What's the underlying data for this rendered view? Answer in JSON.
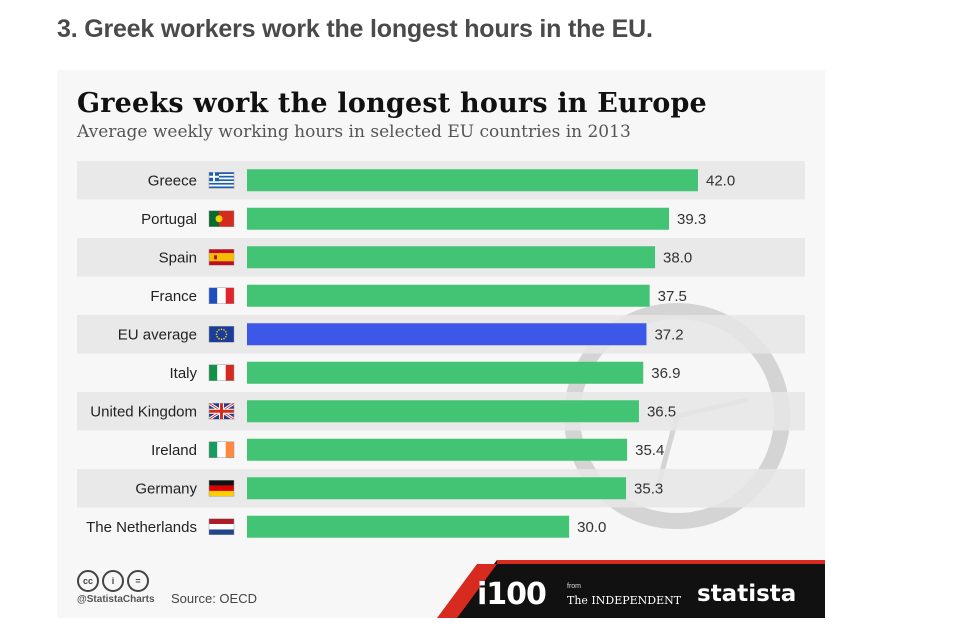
{
  "heading": "3. Greek workers work the longest hours in the EU.",
  "chart_data": {
    "type": "bar",
    "orientation": "horizontal",
    "title": "Greeks work the longest hours in Europe",
    "subtitle": "Average weekly working hours in selected EU countries in 2013",
    "categories": [
      "Greece",
      "Portugal",
      "Spain",
      "France",
      "EU average",
      "Italy",
      "United Kingdom",
      "Ireland",
      "Germany",
      "The Netherlands"
    ],
    "values": [
      42.0,
      39.3,
      38.0,
      37.5,
      37.2,
      36.9,
      36.5,
      35.4,
      35.3,
      30.0
    ],
    "value_labels": [
      "42.0",
      "39.3",
      "38.0",
      "37.5",
      "37.2",
      "36.9",
      "36.5",
      "35.4",
      "35.3",
      "30.0"
    ],
    "flags": [
      "greece-flag-icon",
      "portugal-flag-icon",
      "spain-flag-icon",
      "france-flag-icon",
      "eu-flag-icon",
      "italy-flag-icon",
      "uk-flag-icon",
      "ireland-flag-icon",
      "germany-flag-icon",
      "netherlands-flag-icon"
    ],
    "xlim": [
      0,
      42
    ],
    "grid": false,
    "colors": {
      "bar": "#43c374",
      "highlight": "#3d57e8",
      "highlight_category": "EU average",
      "stripe": "#e6e6e6"
    }
  },
  "footer": {
    "cc_icons": [
      "cc",
      "i",
      "="
    ],
    "handle": "@StatistaCharts",
    "source": "Source: OECD",
    "i100": "i100",
    "from": "from",
    "independent": "The INDEPENDENT",
    "brand": "statista"
  }
}
